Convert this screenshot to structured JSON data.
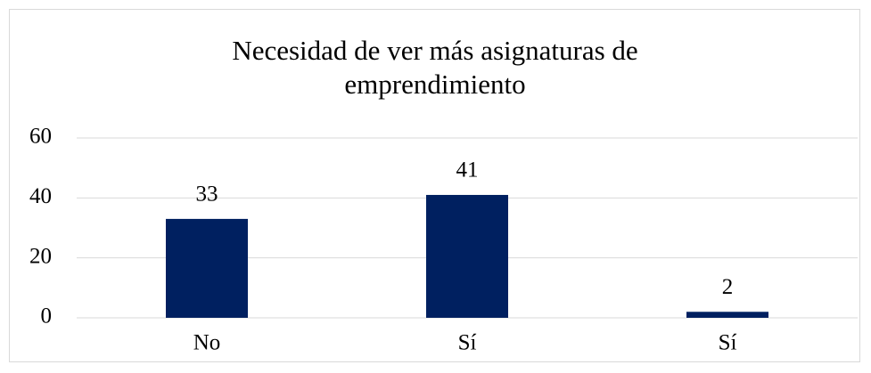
{
  "chart_data": {
    "type": "bar",
    "title": "Necesidad de ver más asignaturas de emprendimiento",
    "categories": [
      "No",
      "Sí",
      "Sí"
    ],
    "values": [
      33,
      41,
      2
    ],
    "color": "#002060",
    "ylim": [
      0,
      60
    ],
    "yticks": [
      0,
      20,
      40,
      60
    ],
    "grid": true
  }
}
